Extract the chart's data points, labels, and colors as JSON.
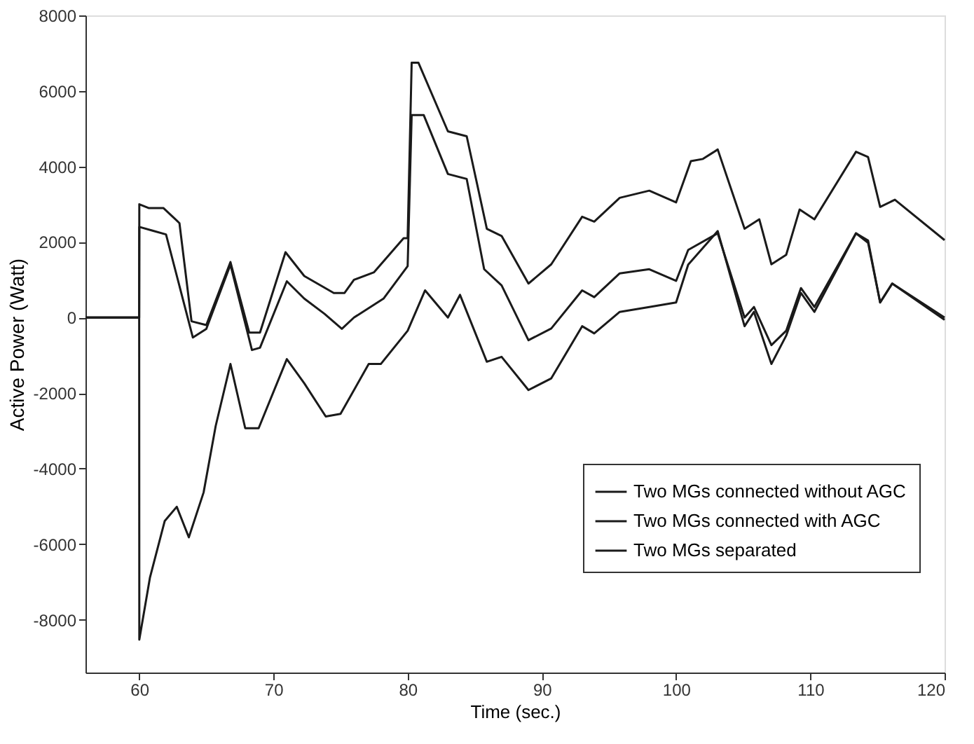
{
  "chart_data": {
    "type": "line",
    "xlabel": "Time (sec.)",
    "ylabel": "Active Power (Watt)",
    "xlim": [
      56,
      120
    ],
    "xticks": [
      60,
      70,
      80,
      90,
      100,
      110,
      120
    ],
    "ylim": [
      -9400,
      8000
    ],
    "yticks": [
      -8000,
      -6000,
      -4000,
      -2000,
      0,
      2000,
      4000,
      6000,
      8000
    ],
    "grid": false,
    "legend": "bottom right",
    "line_style": "solid",
    "marker": "none",
    "series": [
      {
        "name": "Two MGs connected without AGC",
        "color": "#1a1a1a",
        "x": [
          56,
          60,
          60.01,
          60.7,
          61.8,
          63,
          63.9,
          65,
          66.8,
          68.2,
          69,
          70.9,
          72.3,
          74.5,
          75.3,
          76,
          77.5,
          79.7,
          80,
          80.3,
          80.8,
          83,
          84.4,
          85.9,
          87,
          89,
          90.7,
          93,
          93.9,
          95.8,
          98,
          100,
          101.1,
          102,
          103.1,
          105.1,
          106.2,
          107.1,
          108.2,
          109.2,
          110.3,
          113.4,
          114.3,
          115.2,
          116.3,
          120
        ],
        "values": [
          0,
          0,
          3000,
          2900,
          2900,
          2500,
          -100,
          -200,
          1470,
          -400,
          -400,
          1730,
          1100,
          650,
          650,
          1000,
          1200,
          2100,
          2100,
          6750,
          6750,
          4930,
          4800,
          2350,
          2160,
          900,
          1410,
          2670,
          2540,
          3170,
          3360,
          3050,
          4140,
          4200,
          4450,
          2350,
          2600,
          1410,
          1660,
          2860,
          2600,
          4390,
          4250,
          2930,
          3120,
          2050
        ]
      },
      {
        "name": "Two MGs connected with AGC",
        "color": "#1a1a1a",
        "x": [
          56,
          60,
          60.01,
          61,
          62,
          64,
          65,
          66.8,
          68.4,
          69,
          71,
          72.3,
          73.8,
          75.1,
          76,
          78.2,
          80,
          80.3,
          81.2,
          83,
          84.4,
          85.7,
          87,
          89,
          90.7,
          93,
          93.9,
          95.8,
          98,
          100,
          100.9,
          103.1,
          105.1,
          105.8,
          107.1,
          108.2,
          109.3,
          110.3,
          113.4,
          114.3,
          115.2,
          116.1,
          120
        ],
        "values": [
          0,
          0,
          2400,
          2300,
          2200,
          -530,
          -300,
          1400,
          -860,
          -800,
          960,
          500,
          100,
          -300,
          0,
          500,
          1360,
          5360,
          5360,
          3800,
          3670,
          1280,
          850,
          -600,
          -290,
          720,
          540,
          1170,
          1280,
          970,
          1790,
          2230,
          0,
          280,
          -730,
          -350,
          780,
          280,
          2230,
          2040,
          400,
          900,
          0
        ]
      },
      {
        "name": "Two MGs separated",
        "color": "#1a1a1a",
        "x": [
          56,
          60,
          60.01,
          60.8,
          61.9,
          62.8,
          63.7,
          64.8,
          65.7,
          66.8,
          67.9,
          68.9,
          71,
          72.3,
          73.9,
          75,
          77.1,
          78,
          80,
          81.3,
          83,
          83.9,
          85.9,
          87,
          89,
          90.7,
          93,
          93.9,
          95.8,
          98,
          100,
          100.9,
          103.1,
          105.1,
          105.8,
          107.1,
          108.2,
          109.3,
          110.3,
          113.4,
          114.3,
          115.2,
          116.1,
          120
        ],
        "values": [
          0,
          0,
          -8530,
          -6890,
          -5390,
          -5010,
          -5820,
          -4630,
          -2870,
          -1230,
          -2930,
          -2930,
          -1100,
          -1740,
          -2620,
          -2550,
          -1230,
          -1230,
          -350,
          720,
          0,
          600,
          -1170,
          -1040,
          -1920,
          -1610,
          -230,
          -420,
          150,
          280,
          400,
          1400,
          2290,
          -230,
          150,
          -1230,
          -480,
          650,
          150,
          2230,
          1980,
          400,
          900,
          -60
        ]
      }
    ]
  }
}
